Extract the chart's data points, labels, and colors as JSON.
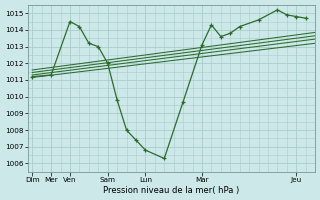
{
  "xlabel": "Pression niveau de la mer( hPa )",
  "bg_color": "#cce8e8",
  "grid_color": "#aacccc",
  "line_color": "#2d6b2d",
  "ylim": [
    1005.5,
    1015.5
  ],
  "yticks": [
    1006,
    1007,
    1008,
    1009,
    1010,
    1011,
    1012,
    1013,
    1014,
    1015
  ],
  "xtick_pos": [
    0,
    2,
    4,
    8,
    12,
    18,
    28
  ],
  "xtick_labels": [
    "Dim",
    "Mer",
    "Ven",
    "Sam",
    "Lun",
    "Mar",
    "Jeu"
  ],
  "xlim": [
    -0.5,
    30
  ],
  "main_x": [
    0,
    2,
    4,
    5,
    6,
    7,
    8,
    9,
    10,
    11,
    12,
    14,
    16,
    18,
    19,
    20,
    21,
    22,
    24,
    26,
    27,
    28,
    29
  ],
  "main_y": [
    1011.2,
    1011.3,
    1014.5,
    1014.2,
    1013.2,
    1013.0,
    1012.0,
    1009.8,
    1008.0,
    1007.4,
    1006.8,
    1006.3,
    1009.7,
    1013.1,
    1014.3,
    1013.6,
    1013.8,
    1014.2,
    1014.6,
    1015.2,
    1014.9,
    1014.8,
    1014.7
  ],
  "trend_lines": [
    {
      "x": [
        0,
        30
      ],
      "y": [
        1011.15,
        1013.2
      ]
    },
    {
      "x": [
        0,
        30
      ],
      "y": [
        1011.3,
        1013.45
      ]
    },
    {
      "x": [
        0,
        30
      ],
      "y": [
        1011.45,
        1013.65
      ]
    },
    {
      "x": [
        0,
        30
      ],
      "y": [
        1011.6,
        1013.85
      ]
    }
  ]
}
